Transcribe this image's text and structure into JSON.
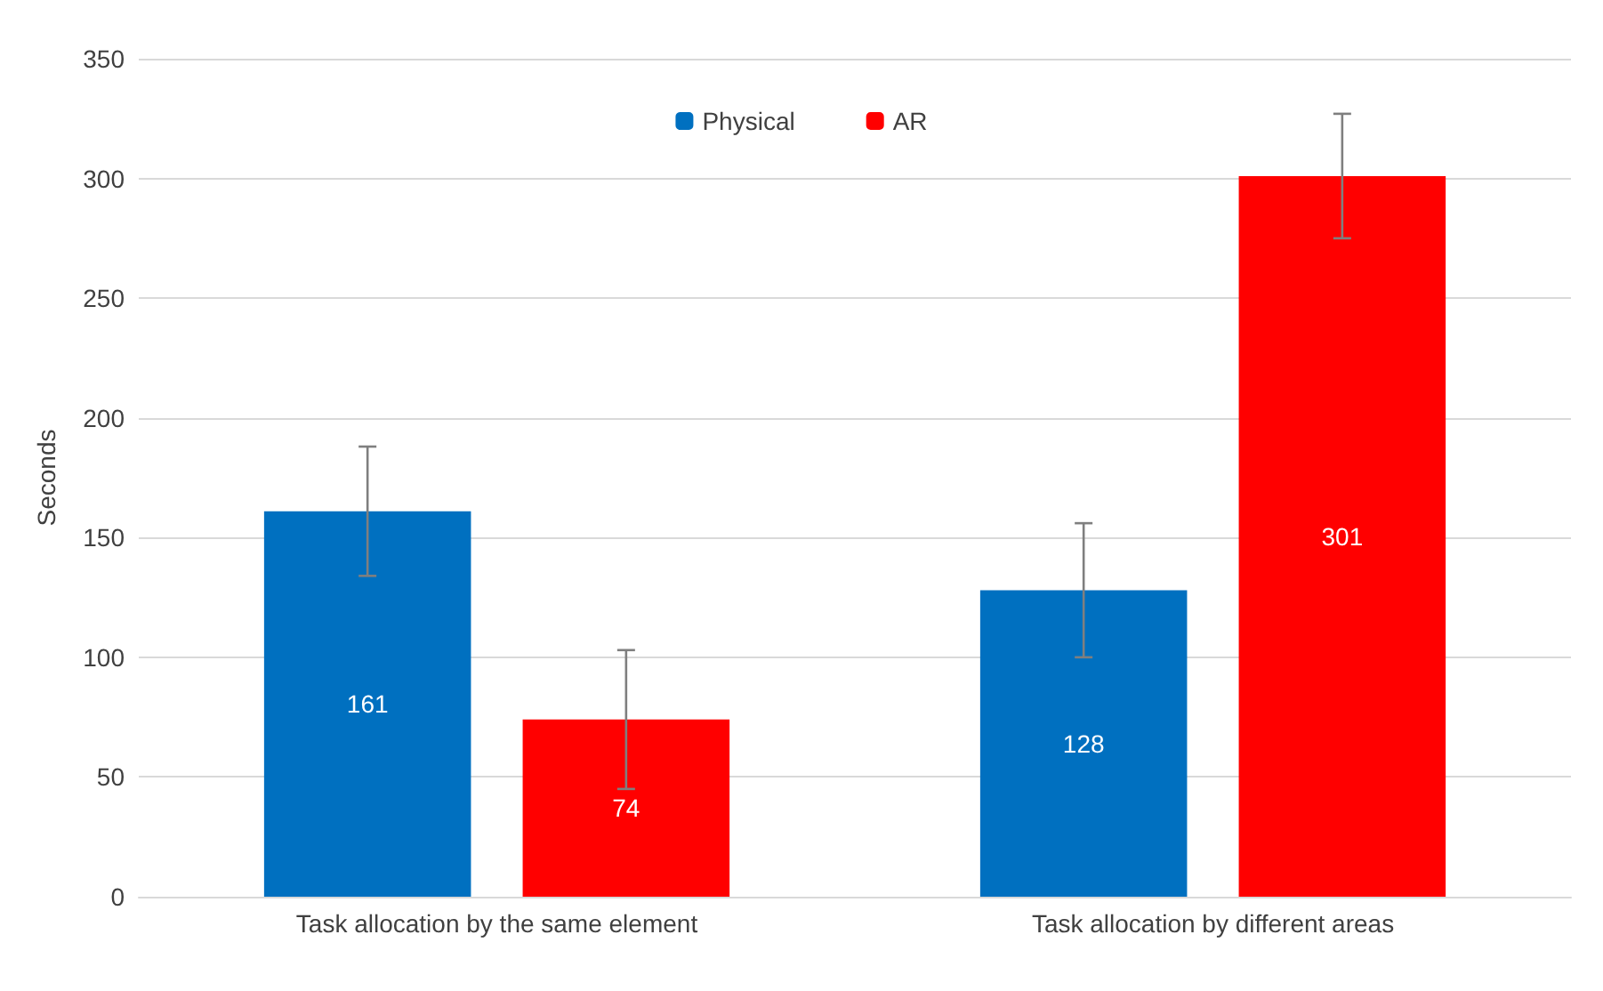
{
  "chart_data": {
    "type": "bar",
    "ylabel": "Seconds",
    "categories": [
      "Task allocation by the same element",
      "Task allocation by different areas"
    ],
    "series": [
      {
        "name": "Physical",
        "color": "#0070c0",
        "values": [
          161,
          128
        ],
        "errors": [
          27,
          28
        ]
      },
      {
        "name": "AR",
        "color": "#ff0000",
        "values": [
          74,
          301
        ],
        "errors": [
          29,
          26
        ]
      }
    ],
    "ylim": [
      0,
      350
    ],
    "yticks": [
      0,
      50,
      100,
      150,
      200,
      250,
      300,
      350
    ],
    "grid": "y",
    "legend": "top",
    "data_labels": true
  }
}
